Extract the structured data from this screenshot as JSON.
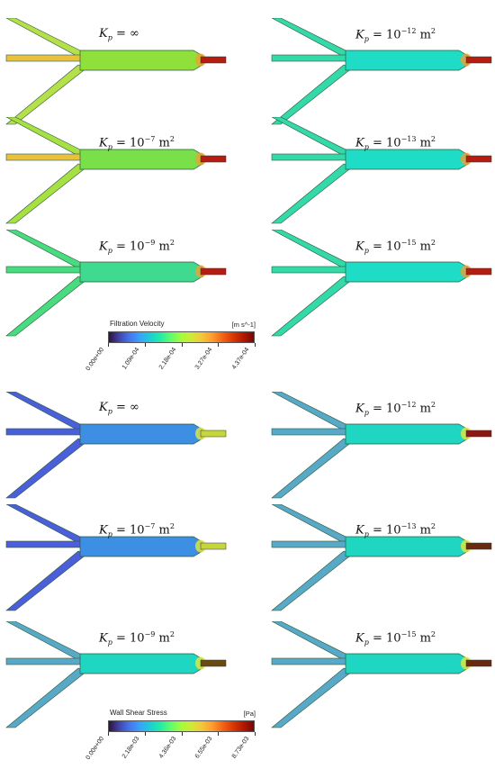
{
  "filtration": {
    "panels": [
      {
        "kp_base": "∞",
        "kp_exp": "",
        "kp_unit": "",
        "body_color": "#8fe03a",
        "channel_color": "#b5e04a",
        "outlet_color": "#b51d10"
      },
      {
        "kp_base": "10",
        "kp_exp": "−7",
        "kp_unit": "m",
        "body_color": "#79e049",
        "channel_color": "#a7e042",
        "outlet_color": "#b51d10"
      },
      {
        "kp_base": "10",
        "kp_exp": "−9",
        "kp_unit": "m",
        "body_color": "#3fd98f",
        "channel_color": "#48db7f",
        "outlet_color": "#b51d10"
      },
      {
        "kp_base": "10",
        "kp_exp": "−12",
        "kp_unit": "m",
        "body_color": "#1fdcc6",
        "channel_color": "#33d9a8",
        "outlet_color": "#b51d10"
      },
      {
        "kp_base": "10",
        "kp_exp": "−13",
        "kp_unit": "m",
        "body_color": "#1fdcc6",
        "channel_color": "#33d9a8",
        "outlet_color": "#b51d10"
      },
      {
        "kp_base": "10",
        "kp_exp": "−15",
        "kp_unit": "m",
        "body_color": "#1fdcc6",
        "channel_color": "#33d9a8",
        "outlet_color": "#b51d10"
      }
    ],
    "colorbar": {
      "title": "Filtration Velocity",
      "unit": "[m s^-1]",
      "ticks": [
        "0.00e+00",
        "1.09e-04",
        "2.18e-04",
        "3.27e-04",
        "4.37e-04"
      ]
    }
  },
  "wall_shear": {
    "panels": [
      {
        "kp_base": "∞",
        "kp_exp": "",
        "kp_unit": "",
        "body_color": "#3c8fe3",
        "channel_color": "#4a5fd9",
        "outlet_color": "#c5d63a"
      },
      {
        "kp_base": "10",
        "kp_exp": "−7",
        "kp_unit": "m",
        "body_color": "#3c8fe3",
        "channel_color": "#4a5fd9",
        "outlet_color": "#c5d63a"
      },
      {
        "kp_base": "10",
        "kp_exp": "−9",
        "kp_unit": "m",
        "body_color": "#1fd6c3",
        "channel_color": "#58a9c8",
        "outlet_color": "#6a4a10"
      },
      {
        "kp_base": "10",
        "kp_exp": "−12",
        "kp_unit": "m",
        "body_color": "#1fd6c3",
        "channel_color": "#58a9c8",
        "outlet_color": "#8a1a10"
      },
      {
        "kp_base": "10",
        "kp_exp": "−13",
        "kp_unit": "m",
        "body_color": "#1fd6c3",
        "channel_color": "#58a9c8",
        "outlet_color": "#6a2a10"
      },
      {
        "kp_base": "10",
        "kp_exp": "−15",
        "kp_unit": "m",
        "body_color": "#1fd6c3",
        "channel_color": "#58a9c8",
        "outlet_color": "#6a2a10"
      }
    ],
    "colorbar": {
      "title": "Wall Shear Stress",
      "unit": "[Pa]",
      "ticks": [
        "0.00e+00",
        "2.18e-03",
        "4.36e-03",
        "6.55e-03",
        "8.73e-03"
      ]
    }
  },
  "label_symbol": "K",
  "label_subscript": "p",
  "label_equals": "=",
  "unit_exponent": "2"
}
